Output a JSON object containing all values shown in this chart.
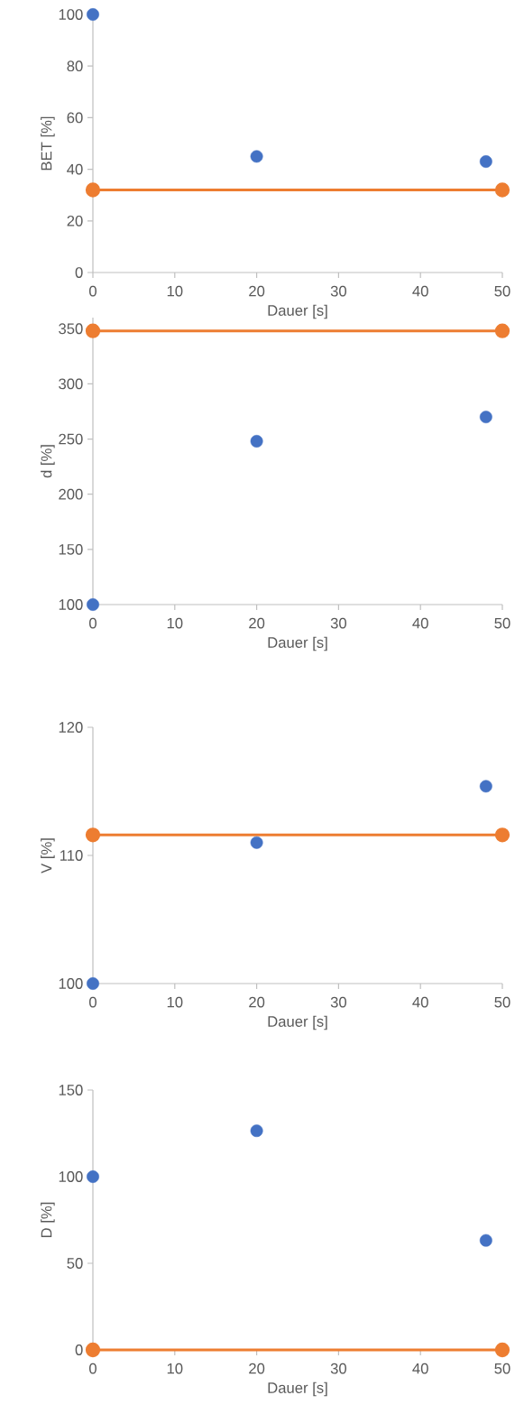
{
  "chart_data": [
    {
      "type": "scatter",
      "xlabel": "Dauer [s]",
      "ylabel": "BET [%]",
      "xlim": [
        0,
        50
      ],
      "xticks": [
        0,
        10,
        20,
        30,
        40,
        50
      ],
      "ylim": [
        0,
        100
      ],
      "yticks": [
        0,
        20,
        40,
        60,
        80,
        100
      ],
      "marker": "circle",
      "grid": false,
      "series": [
        {
          "color": "#4472c4",
          "x": [
            0,
            20,
            48
          ],
          "values": [
            100,
            45,
            43
          ]
        },
        {
          "type": "line",
          "color": "#ed7d31",
          "x": [
            0,
            50
          ],
          "values": [
            32,
            32
          ]
        }
      ]
    },
    {
      "type": "scatter",
      "xlabel": "Dauer [s]",
      "ylabel": "d [%]",
      "xlim": [
        0,
        50
      ],
      "xticks": [
        0,
        10,
        20,
        30,
        40,
        50
      ],
      "ylim": [
        100,
        360
      ],
      "yticks": [
        100,
        150,
        200,
        250,
        300,
        350
      ],
      "marker": "circle",
      "grid": false,
      "series": [
        {
          "color": "#4472c4",
          "x": [
            0,
            20,
            48
          ],
          "values": [
            100,
            248,
            270
          ]
        },
        {
          "type": "line",
          "color": "#ed7d31",
          "x": [
            0,
            50
          ],
          "values": [
            348,
            348
          ]
        }
      ]
    },
    {
      "type": "scatter",
      "xlabel": "Dauer [s]",
      "ylabel": "V [%]",
      "xlim": [
        0,
        50
      ],
      "xticks": [
        0,
        10,
        20,
        30,
        40,
        50
      ],
      "ylim": [
        100,
        120
      ],
      "yticks": [
        100,
        110,
        120
      ],
      "marker": "circle",
      "grid": false,
      "series": [
        {
          "color": "#4472c4",
          "x": [
            0,
            20,
            48
          ],
          "values": [
            100,
            111.0,
            115.4
          ]
        },
        {
          "type": "line",
          "color": "#ed7d31",
          "x": [
            0,
            50
          ],
          "values": [
            111.6,
            111.6
          ]
        }
      ]
    },
    {
      "type": "scatter",
      "xlabel": "Dauer [s]",
      "ylabel": "D [%]",
      "xlim": [
        0,
        50
      ],
      "xticks": [
        0,
        10,
        20,
        30,
        40,
        50
      ],
      "ylim": [
        0,
        150
      ],
      "yticks": [
        0,
        50,
        100,
        150
      ],
      "marker": "circle",
      "grid": false,
      "series": [
        {
          "color": "#4472c4",
          "x": [
            0,
            20,
            48
          ],
          "values": [
            100,
            126.5,
            63.2
          ]
        },
        {
          "type": "line",
          "color": "#ed7d31",
          "x": [
            0,
            50
          ],
          "values": [
            0,
            0
          ]
        }
      ]
    }
  ]
}
